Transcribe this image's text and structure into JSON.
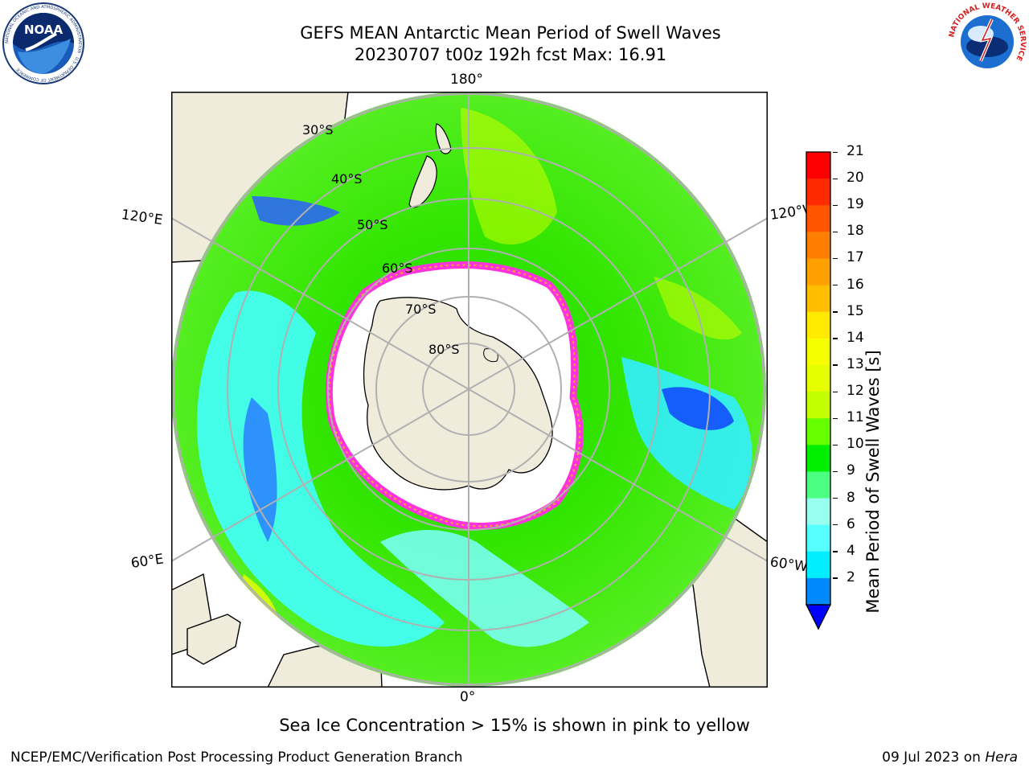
{
  "title": {
    "line1": "GEFS MEAN Antarctic Mean Period of Swell Waves",
    "line2": "20230707 t00z 192h fcst   Max: 16.91"
  },
  "map": {
    "projection": "south-polar-stereographic",
    "longitude_labels": {
      "top": "180°",
      "bottom": "0°",
      "left_upper": "120°E",
      "left_lower": "60°E",
      "right_upper": "120°W",
      "right_lower": "60°W"
    },
    "latitude_labels": [
      "30°S",
      "40°S",
      "50°S",
      "60°S",
      "70°S",
      "80°S"
    ],
    "land_color": "#efecdc",
    "ice_color": "#ffffff",
    "ice_edge_colors": [
      "#ff00ff",
      "#ffaa33"
    ]
  },
  "colorbar": {
    "label": "Mean Period of Swell Waves [s]",
    "ticks": [
      "21",
      "20",
      "19",
      "18",
      "17",
      "16",
      "15",
      "14",
      "13",
      "12",
      "11",
      "10",
      "9",
      "8",
      "6",
      "4",
      "2"
    ],
    "colors_top_to_bottom": [
      "#ff0000",
      "#ff2a00",
      "#ff5500",
      "#ff7f00",
      "#ff9f00",
      "#ffbf00",
      "#ffea00",
      "#f5ff00",
      "#e6ff00",
      "#c3ff00",
      "#66ff00",
      "#00ee00",
      "#4dff80",
      "#99ffee",
      "#55ffff",
      "#00eeff",
      "#0088ff"
    ],
    "extend_color": "#0000ff"
  },
  "footer": {
    "note": "Sea Ice Concentration > 15% is shown in pink to yellow",
    "left": "NCEP/EMC/Verification Post Processing Product Generation Branch",
    "date": "09 Jul 2023 on ",
    "host": "Hera"
  },
  "logos": {
    "noaa_text": "NOAA",
    "noaa_ring_text": "NATIONAL OCEANIC AND ATMOSPHERIC ADMINISTRATION · U.S. DEPARTMENT OF COMMERCE",
    "nws_ring_text": "NATIONAL WEATHER SERVICE"
  }
}
